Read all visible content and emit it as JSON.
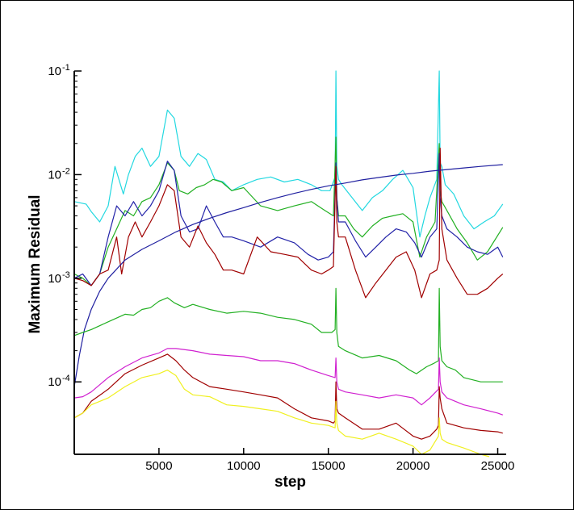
{
  "chart_data": {
    "type": "line",
    "title": "",
    "xlabel": "step",
    "ylabel": "Maximum Residual",
    "xlim": [
      0,
      25500
    ],
    "ylim": [
      2e-05,
      0.1
    ],
    "yscale": "log",
    "x_ticks": [
      5000,
      10000,
      15000,
      20000,
      25000
    ],
    "y_ticks": [
      {
        "value": 0.0001,
        "base": "10",
        "exp": "-4"
      },
      {
        "value": 0.001,
        "base": "10",
        "exp": "-3"
      },
      {
        "value": 0.01,
        "base": "10",
        "exp": "-2"
      },
      {
        "value": 0.1,
        "base": "10",
        "exp": "-1"
      }
    ],
    "grid": false,
    "legend": "none",
    "series": [
      {
        "color": "#22d8e0",
        "x": [
          0,
          700,
          1000,
          1500,
          2000,
          2400,
          2900,
          3200,
          3600,
          4000,
          4500,
          5000,
          5500,
          5900,
          6300,
          6800,
          7300,
          7800,
          8300,
          8800,
          9300,
          10000,
          10800,
          11600,
          12400,
          13200,
          14000,
          14600,
          15100,
          15400,
          15450,
          15500,
          15600,
          15800,
          16400,
          17000,
          17600,
          18200,
          18800,
          19400,
          20000,
          20400,
          20700,
          21000,
          21400,
          21550,
          21600,
          21700,
          21900,
          22400,
          23000,
          23600,
          24200,
          24800,
          25300
        ],
        "y": [
          0.0055,
          0.0052,
          0.0044,
          0.0035,
          0.005,
          0.012,
          0.0065,
          0.01,
          0.015,
          0.018,
          0.012,
          0.015,
          0.042,
          0.035,
          0.015,
          0.012,
          0.016,
          0.014,
          0.009,
          0.0085,
          0.007,
          0.008,
          0.009,
          0.0095,
          0.0085,
          0.009,
          0.008,
          0.007,
          0.007,
          0.0095,
          0.1,
          0.012,
          0.009,
          0.008,
          0.006,
          0.0045,
          0.006,
          0.007,
          0.009,
          0.011,
          0.0075,
          0.0025,
          0.004,
          0.006,
          0.009,
          0.1,
          0.013,
          0.012,
          0.008,
          0.0065,
          0.004,
          0.003,
          0.0035,
          0.004,
          0.0052
        ]
      },
      {
        "color": "#22b022",
        "x": [
          0,
          500,
          1000,
          1500,
          2000,
          2500,
          3000,
          3500,
          4000,
          4500,
          5000,
          5500,
          5900,
          6200,
          6700,
          7200,
          7700,
          8200,
          8700,
          9300,
          10000,
          11000,
          12000,
          13000,
          14000,
          14800,
          15300,
          15450,
          15500,
          15600,
          16000,
          16500,
          17000,
          17600,
          18200,
          18800,
          19400,
          20000,
          20400,
          20800,
          21300,
          21550,
          21600,
          21700,
          22000,
          22600,
          23200,
          23800,
          24400,
          25300
        ],
        "y": [
          0.0011,
          0.001,
          0.00085,
          0.0011,
          0.002,
          0.003,
          0.0045,
          0.004,
          0.0055,
          0.006,
          0.008,
          0.013,
          0.011,
          0.007,
          0.0065,
          0.0075,
          0.008,
          0.009,
          0.0085,
          0.007,
          0.0075,
          0.005,
          0.0045,
          0.005,
          0.0055,
          0.0045,
          0.004,
          0.023,
          0.006,
          0.004,
          0.004,
          0.003,
          0.0025,
          0.0032,
          0.0038,
          0.004,
          0.0042,
          0.0035,
          0.0016,
          0.0025,
          0.0035,
          0.02,
          0.007,
          0.0055,
          0.0045,
          0.003,
          0.0022,
          0.0015,
          0.0018,
          0.0031
        ]
      },
      {
        "color": "#2222a8",
        "x": [
          0,
          500,
          1000,
          1500,
          2000,
          2500,
          3000,
          3500,
          4000,
          4500,
          5000,
          5500,
          5900,
          6300,
          6800,
          7300,
          7800,
          8300,
          8800,
          9300,
          10000,
          11000,
          12000,
          13000,
          13800,
          14400,
          15000,
          15300,
          15450,
          15500,
          15600,
          16000,
          16600,
          17200,
          17800,
          18400,
          19000,
          19600,
          20100,
          20500,
          21000,
          21400,
          21550,
          21600,
          21700,
          22000,
          22600,
          23200,
          23800,
          24400,
          25000,
          25300
        ],
        "y": [
          0.001,
          0.0011,
          0.00085,
          0.0011,
          0.0025,
          0.005,
          0.004,
          0.0055,
          0.004,
          0.005,
          0.007,
          0.0135,
          0.011,
          0.004,
          0.0028,
          0.003,
          0.005,
          0.0035,
          0.0025,
          0.0025,
          0.0023,
          0.002,
          0.0025,
          0.0022,
          0.0017,
          0.0015,
          0.0016,
          0.0018,
          0.013,
          0.006,
          0.0035,
          0.0035,
          0.0023,
          0.0016,
          0.002,
          0.0025,
          0.003,
          0.0028,
          0.0022,
          0.0016,
          0.0025,
          0.003,
          0.016,
          0.006,
          0.004,
          0.003,
          0.0025,
          0.002,
          0.0018,
          0.0017,
          0.002,
          0.0016
        ]
      },
      {
        "color": "#a00000",
        "x": [
          0,
          500,
          1000,
          1500,
          2000,
          2500,
          2800,
          3200,
          3600,
          4000,
          4500,
          5000,
          5500,
          5900,
          6300,
          6800,
          7300,
          7800,
          8300,
          8800,
          9300,
          10000,
          10800,
          11600,
          12400,
          13200,
          14000,
          14600,
          15000,
          15300,
          15450,
          15500,
          15600,
          16000,
          16600,
          17200,
          17800,
          18400,
          19000,
          19600,
          20100,
          20500,
          21000,
          21400,
          21550,
          21600,
          21700,
          22000,
          22600,
          23200,
          23800,
          24400,
          25000,
          25300
        ],
        "y": [
          0.001,
          0.00095,
          0.00085,
          0.0011,
          0.0012,
          0.0025,
          0.0011,
          0.0025,
          0.0035,
          0.0025,
          0.0035,
          0.005,
          0.008,
          0.007,
          0.0025,
          0.002,
          0.0032,
          0.0022,
          0.0017,
          0.0012,
          0.0012,
          0.0011,
          0.0025,
          0.0018,
          0.0017,
          0.0016,
          0.0012,
          0.0011,
          0.0012,
          0.0013,
          0.012,
          0.0035,
          0.0025,
          0.0025,
          0.0012,
          0.00065,
          0.0009,
          0.0012,
          0.0016,
          0.0018,
          0.0012,
          0.00065,
          0.0011,
          0.0012,
          0.0015,
          0.018,
          0.003,
          0.0015,
          0.001,
          0.0007,
          0.0007,
          0.0008,
          0.001,
          0.0011
        ]
      },
      {
        "color": "#2020a0",
        "x": [
          0,
          300,
          600,
          1000,
          1500,
          2000,
          3000,
          4000,
          5000,
          6000,
          7000,
          8000,
          9000,
          10000,
          11000,
          12000,
          13000,
          14000,
          15000,
          16000,
          17000,
          18000,
          19000,
          20000,
          21000,
          22000,
          23000,
          24000,
          25300
        ],
        "y": [
          9e-05,
          0.00018,
          0.00032,
          0.0005,
          0.00075,
          0.001,
          0.0015,
          0.0019,
          0.0023,
          0.0028,
          0.0033,
          0.0038,
          0.0043,
          0.0048,
          0.0054,
          0.006,
          0.0066,
          0.0072,
          0.0078,
          0.0083,
          0.0089,
          0.0094,
          0.0099,
          0.0103,
          0.0108,
          0.0112,
          0.0116,
          0.012,
          0.0125
        ]
      },
      {
        "color": "#22b022",
        "x": [
          0,
          500,
          1000,
          2000,
          3000,
          3500,
          4000,
          4500,
          5000,
          5500,
          5900,
          6500,
          7000,
          8000,
          9000,
          10000,
          11000,
          12000,
          13000,
          14000,
          14600,
          15200,
          15400,
          15450,
          15500,
          15600,
          16000,
          17000,
          18000,
          19000,
          19800,
          20200,
          20800,
          21200,
          21500,
          21550,
          21600,
          21700,
          22000,
          22500,
          23000,
          24000,
          25000,
          25300
        ],
        "y": [
          0.00028,
          0.0003,
          0.00032,
          0.00038,
          0.00045,
          0.00044,
          0.0005,
          0.00052,
          0.0006,
          0.00065,
          0.00058,
          0.00052,
          0.00056,
          0.0005,
          0.00046,
          0.00048,
          0.00046,
          0.00042,
          0.0004,
          0.00036,
          0.0003,
          0.0003,
          0.00032,
          0.0008,
          0.0003,
          0.00022,
          0.0002,
          0.00017,
          0.00018,
          0.00016,
          0.00013,
          0.00012,
          0.00014,
          0.00015,
          0.00016,
          0.0008,
          0.00022,
          0.00016,
          0.00014,
          0.00013,
          0.00011,
          0.0001,
          0.0001,
          0.0001
        ]
      },
      {
        "color": "#d020d0",
        "x": [
          0,
          500,
          1000,
          2000,
          3000,
          4000,
          5000,
          5500,
          6000,
          7000,
          8000,
          9000,
          10000,
          11000,
          12000,
          13000,
          14000,
          15000,
          15400,
          15450,
          15500,
          15600,
          16000,
          17000,
          18000,
          19000,
          20000,
          20500,
          21000,
          21500,
          21550,
          21600,
          21700,
          22000,
          23000,
          24000,
          25000,
          25300
        ],
        "y": [
          7e-05,
          7.2e-05,
          8e-05,
          0.00011,
          0.00014,
          0.00017,
          0.00019,
          0.00021,
          0.00021,
          0.0002,
          0.000185,
          0.00018,
          0.000175,
          0.00016,
          0.00016,
          0.00015,
          0.00013,
          0.000115,
          0.00011,
          0.00017,
          0.0001,
          8.5e-05,
          8e-05,
          7.5e-05,
          7e-05,
          7.5e-05,
          7e-05,
          6e-05,
          7e-05,
          8.5e-05,
          0.00017,
          0.0001,
          8e-05,
          7e-05,
          6e-05,
          5.5e-05,
          5e-05,
          4.8e-05
        ]
      },
      {
        "color": "#a00000",
        "x": [
          0,
          500,
          1000,
          2000,
          3000,
          4000,
          5000,
          5500,
          6000,
          6500,
          7000,
          8000,
          9000,
          10000,
          11000,
          12000,
          13000,
          14000,
          15000,
          15300,
          15400,
          15450,
          15500,
          15600,
          16000,
          17000,
          18000,
          19000,
          20000,
          20500,
          21000,
          21400,
          21500,
          21550,
          21600,
          21700,
          22000,
          23000,
          24000,
          25000,
          25300
        ],
        "y": [
          4.5e-05,
          5e-05,
          6.5e-05,
          8.5e-05,
          0.00012,
          0.000145,
          0.00017,
          0.000185,
          0.00016,
          0.00013,
          0.00011,
          9e-05,
          8.5e-05,
          8e-05,
          7.5e-05,
          7e-05,
          5.5e-05,
          4.5e-05,
          4.2e-05,
          4e-05,
          4.2e-05,
          0.0001,
          5.5e-05,
          5e-05,
          4.5e-05,
          3.5e-05,
          3.5e-05,
          4e-05,
          3e-05,
          2.8e-05,
          3e-05,
          3.5e-05,
          3.8e-05,
          9e-05,
          7e-05,
          5.5e-05,
          4e-05,
          3.6e-05,
          3.4e-05,
          3.3e-05,
          3.2e-05
        ]
      },
      {
        "color": "#f0f020",
        "x": [
          0,
          500,
          1000,
          2000,
          3000,
          4000,
          5000,
          5500,
          6000,
          6500,
          7000,
          8000,
          9000,
          10000,
          11000,
          12000,
          13000,
          14000,
          15000,
          15400,
          15450,
          15500,
          15600,
          16000,
          17000,
          18000,
          19000,
          20000,
          20500,
          21000,
          21500,
          21550,
          21600,
          21700,
          22000,
          23000,
          24000,
          24500
        ],
        "y": [
          4.5e-05,
          5e-05,
          6e-05,
          7e-05,
          9e-05,
          0.00011,
          0.00012,
          0.00013,
          0.000115,
          8.5e-05,
          7.5e-05,
          7.2e-05,
          6e-05,
          5.8e-05,
          5.5e-05,
          5.2e-05,
          4.5e-05,
          4e-05,
          3.8e-05,
          3.6e-05,
          6.5e-05,
          4e-05,
          3.4e-05,
          3e-05,
          2.8e-05,
          3.2e-05,
          2.8e-05,
          2.4e-05,
          2e-05,
          2.2e-05,
          3e-05,
          4.5e-05,
          3.2e-05,
          2.8e-05,
          2.6e-05,
          2.3e-05,
          2e-05,
          1.9e-05
        ]
      }
    ]
  }
}
